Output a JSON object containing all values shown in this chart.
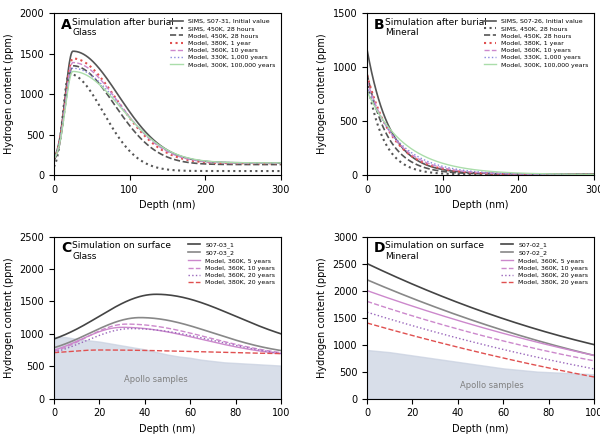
{
  "panel_A": {
    "title": "Simulation after burial\nGlass",
    "label": "A",
    "ylim": [
      0,
      2000
    ],
    "xlim": [
      0,
      300
    ],
    "ylabel": "Hydrogen content (ppm)",
    "xlabel": "Depth (nm)",
    "legend": [
      "SIMS, S07-31, Initial value",
      "SIMS, 450K, 28 hours",
      "Model, 450K, 28 hours",
      "Model, 380K, 1 year",
      "Model, 360K, 10 years",
      "Model, 330K, 1,000 years",
      "Model, 300K, 100,000 years"
    ]
  },
  "panel_B": {
    "title": "Simulation after burial\nMineral",
    "label": "B",
    "ylim": [
      0,
      1500
    ],
    "xlim": [
      0,
      300
    ],
    "ylabel": "Hydrogen content (ppm)",
    "xlabel": "Depth (nm)",
    "legend": [
      "SIMS, S07-26, Initial value",
      "SIMS, 450K, 28 hours",
      "Model, 450K, 28 hours",
      "Model, 380K, 1 year",
      "Model, 360K, 10 years",
      "Model, 330K, 1,000 years",
      "Model, 300K, 100,000 years"
    ]
  },
  "panel_C": {
    "title": "Simulation on surface\nGlass",
    "label": "C",
    "ylim": [
      0,
      2500
    ],
    "xlim": [
      0,
      100
    ],
    "ylabel": "Hydrogen content (ppm)",
    "xlabel": "Depth (nm)",
    "legend": [
      "S07-03_1",
      "S07-03_2",
      "Model, 360K, 5 years",
      "Model, 360K, 10 years",
      "Model, 360K, 20 years",
      "Model, 380K, 20 years"
    ],
    "apollo_label": "Apollo samples"
  },
  "panel_D": {
    "title": "Simulation on surface\nMineral",
    "label": "D",
    "ylim": [
      0,
      3000
    ],
    "xlim": [
      0,
      100
    ],
    "ylabel": "Hydrogen content (ppm)",
    "xlabel": "Depth (nm)",
    "legend": [
      "S07-02_1",
      "S07-02_2",
      "Model, 360K, 5 years",
      "Model, 360K, 10 years",
      "Model, 360K, 20 years",
      "Model, 380K, 20 years"
    ],
    "apollo_label": "Apollo samples"
  },
  "colors": {
    "sims_initial": "#555555",
    "sims_450K": "#555555",
    "model_450K": "#555555",
    "model_380K_1y": "#e05050",
    "model_360K_10y": "#cc88cc",
    "model_330K_1000y": "#8888dd",
    "model_300K_100000y": "#aaddaa",
    "s0703_1": "#444444",
    "s0703_2": "#888888",
    "model_360K_5y": "#cc88cc",
    "model_360K_20y": "#9966bb",
    "model_380K_20y": "#e05050",
    "apollo_fill": "#c8d0e0"
  }
}
